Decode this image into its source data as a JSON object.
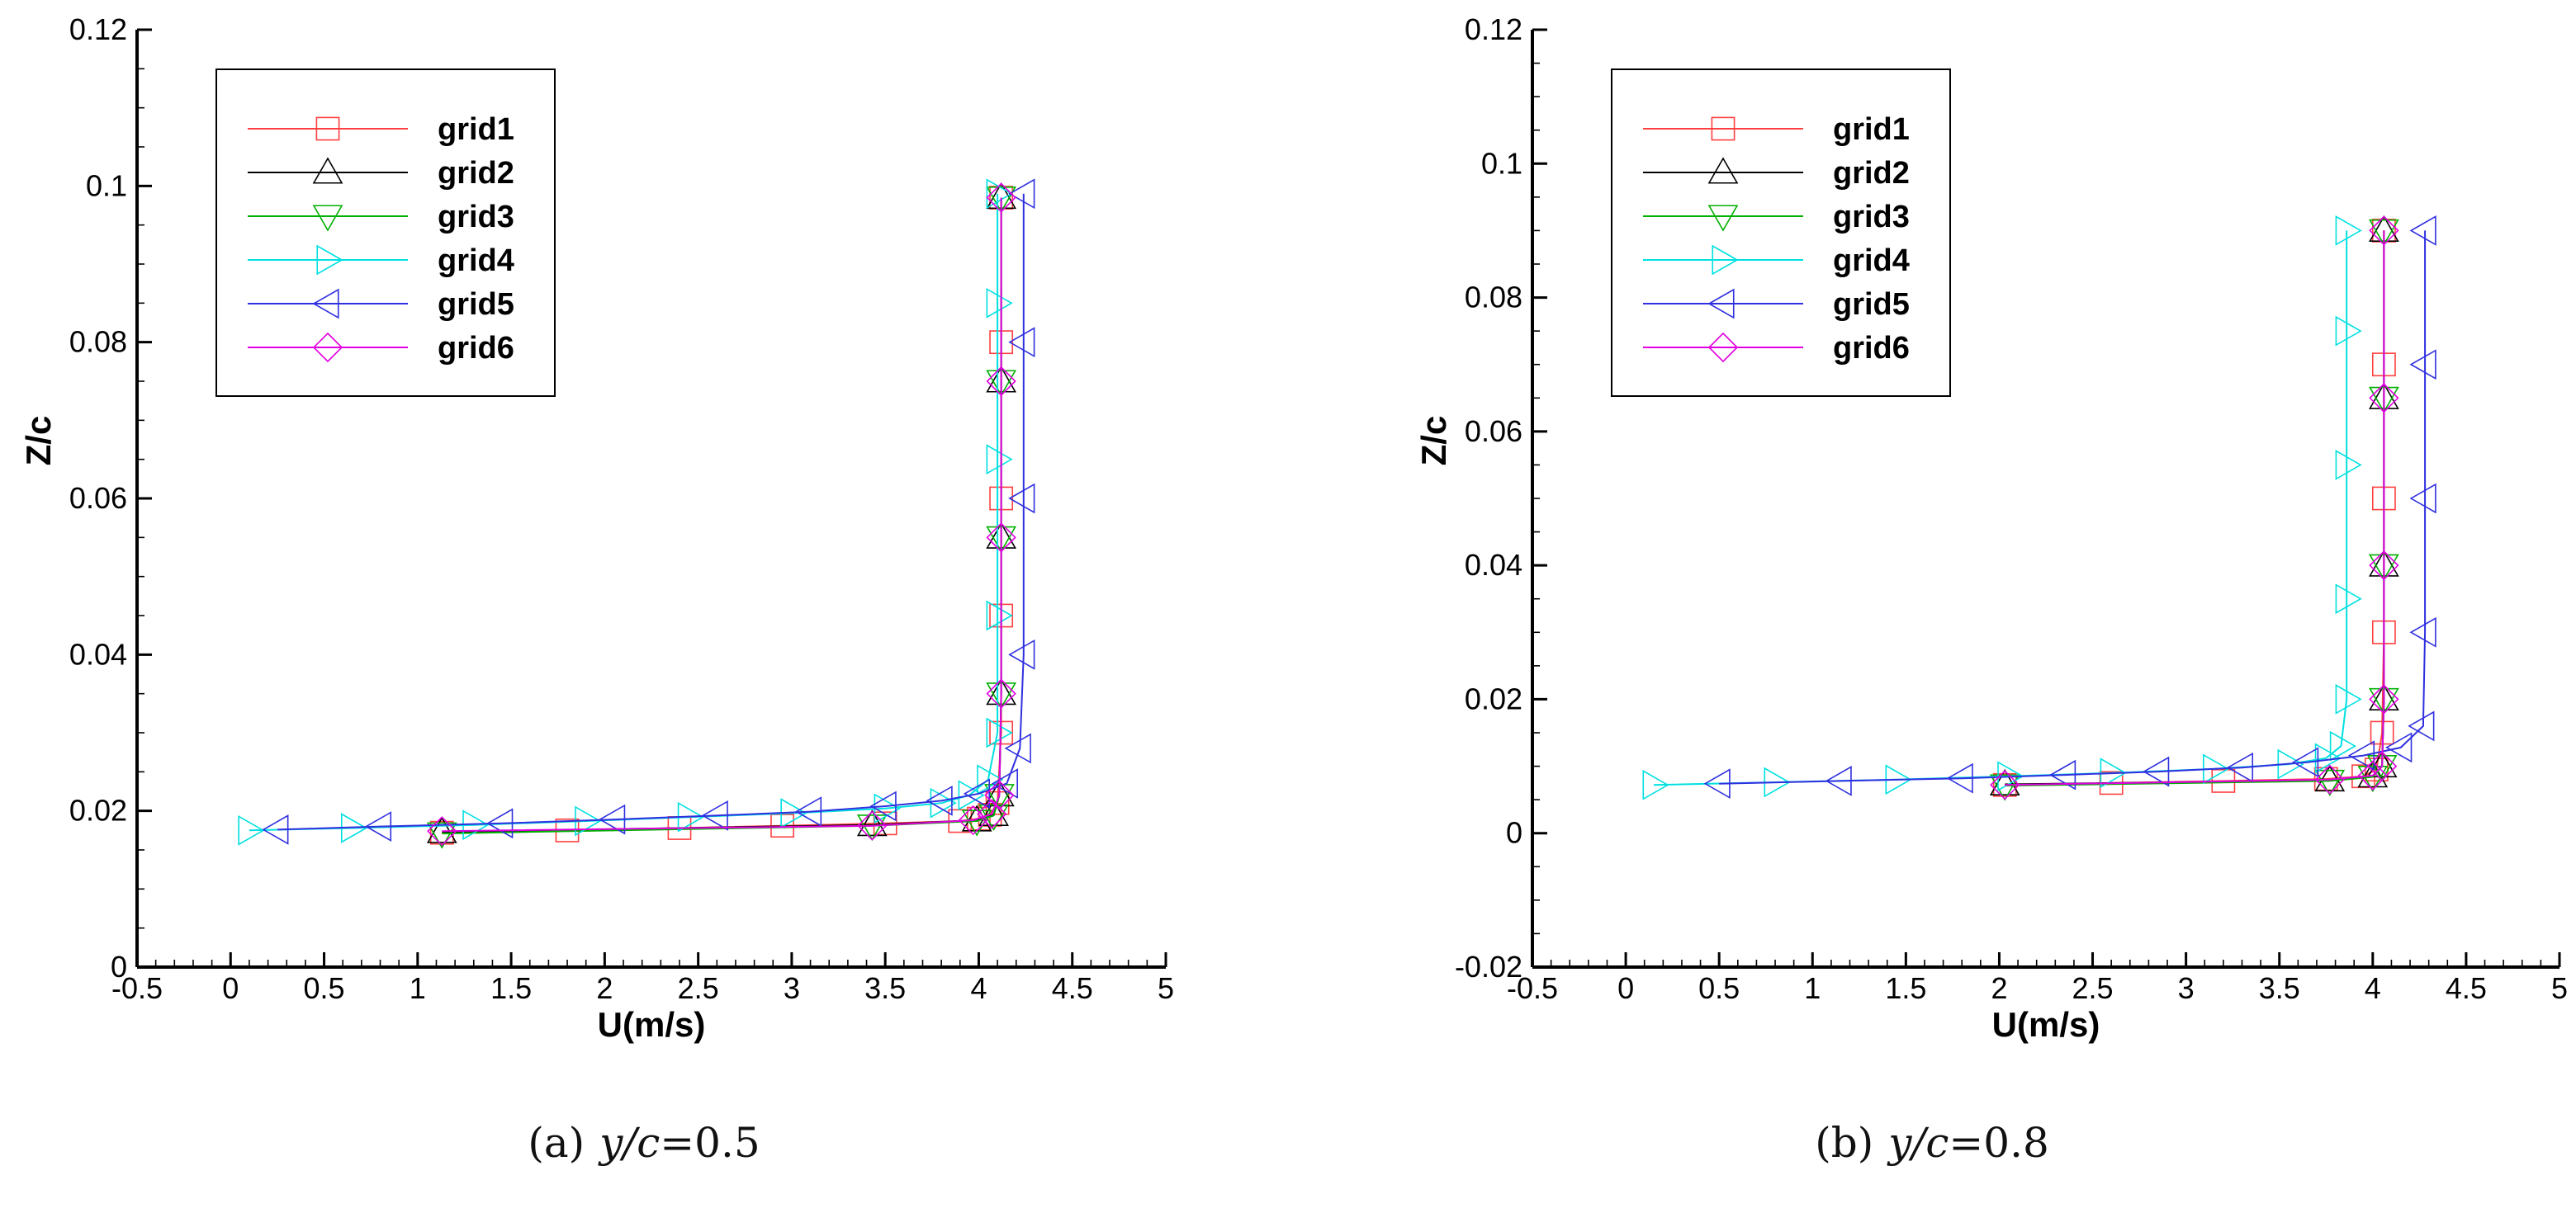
{
  "chart_data": [
    {
      "type": "line",
      "caption_label": "(a)",
      "caption_var": "y/c",
      "caption_value": "=0.5",
      "xlabel": "U(m/s)",
      "ylabel": "Z/c",
      "xlim": [
        -0.5,
        5
      ],
      "ylim": [
        0,
        0.12
      ],
      "xticks": [
        "-0.5",
        "0",
        "0.5",
        "1",
        "1.5",
        "2",
        "2.5",
        "3",
        "3.5",
        "4",
        "4.5",
        "5"
      ],
      "yticks": [
        "0",
        "0.02",
        "0.04",
        "0.06",
        "0.08",
        "0.1",
        "0.12"
      ],
      "x_minor_step": 0.1,
      "y_minor_step": 0.005,
      "legend_position": "top-left",
      "series": [
        {
          "name": "grid1",
          "color": "#ff4040",
          "marker": "square",
          "x": [
            1.13,
            1.8,
            2.4,
            2.95,
            3.5,
            3.9,
            4.0,
            4.06,
            4.1,
            4.12,
            4.12,
            4.12,
            4.12,
            4.12
          ],
          "y": [
            0.0172,
            0.0175,
            0.0178,
            0.0181,
            0.0184,
            0.0187,
            0.019,
            0.0195,
            0.021,
            0.03,
            0.045,
            0.06,
            0.08,
            0.0985
          ]
        },
        {
          "name": "grid2",
          "color": "#000000",
          "marker": "triangle-up",
          "x": [
            1.13,
            3.43,
            3.99,
            4.08,
            4.11,
            4.12,
            4.12,
            4.12,
            4.12
          ],
          "y": [
            0.0173,
            0.0182,
            0.0188,
            0.0195,
            0.022,
            0.035,
            0.055,
            0.075,
            0.0985
          ]
        },
        {
          "name": "grid3",
          "color": "#00b000",
          "marker": "triangle-down",
          "x": [
            1.13,
            3.43,
            3.99,
            4.08,
            4.11,
            4.12,
            4.12,
            4.12,
            4.12
          ],
          "y": [
            0.0171,
            0.0181,
            0.0187,
            0.0194,
            0.022,
            0.035,
            0.055,
            0.075,
            0.0985
          ]
        },
        {
          "name": "grid4",
          "color": "#00e0e0",
          "marker": "triangle-right",
          "x": [
            0.1,
            0.65,
            1.3,
            1.9,
            2.45,
            3.0,
            3.5,
            3.8,
            3.95,
            4.05,
            4.1,
            4.1,
            4.1,
            4.1,
            4.1
          ],
          "y": [
            0.0175,
            0.0178,
            0.0182,
            0.0187,
            0.0192,
            0.0197,
            0.0203,
            0.021,
            0.022,
            0.024,
            0.03,
            0.045,
            0.065,
            0.085,
            0.099
          ]
        },
        {
          "name": "grid5",
          "color": "#3030e0",
          "marker": "triangle-left",
          "x": [
            0.25,
            0.8,
            1.45,
            2.05,
            2.6,
            3.1,
            3.5,
            3.8,
            4.0,
            4.15,
            4.22,
            4.24,
            4.24,
            4.24,
            4.24
          ],
          "y": [
            0.0176,
            0.018,
            0.0184,
            0.0189,
            0.0194,
            0.0199,
            0.0206,
            0.0213,
            0.0222,
            0.0235,
            0.028,
            0.04,
            0.06,
            0.08,
            0.099
          ]
        },
        {
          "name": "grid6",
          "color": "#e000e0",
          "marker": "diamond",
          "x": [
            1.13,
            3.43,
            3.97,
            4.07,
            4.11,
            4.12,
            4.12,
            4.12,
            4.12
          ],
          "y": [
            0.0174,
            0.0181,
            0.0188,
            0.0196,
            0.022,
            0.035,
            0.055,
            0.075,
            0.0985
          ]
        }
      ]
    },
    {
      "type": "line",
      "caption_label": "(b)",
      "caption_var": "y/c",
      "caption_value": "=0.8",
      "xlabel": "U(m/s)",
      "ylabel": "Z/c",
      "xlim": [
        -0.5,
        5
      ],
      "ylim": [
        -0.02,
        0.12
      ],
      "xticks": [
        "-0.5",
        "0",
        "0.5",
        "1",
        "1.5",
        "2",
        "2.5",
        "3",
        "3.5",
        "4",
        "4.5",
        "5"
      ],
      "yticks": [
        "-0.02",
        "0",
        "0.02",
        "0.04",
        "0.06",
        "0.08",
        "0.1",
        "0.12"
      ],
      "x_minor_step": 0.1,
      "y_minor_step": 0.005,
      "legend_position": "top-left",
      "series": [
        {
          "name": "grid1",
          "color": "#ff4040",
          "marker": "square",
          "x": [
            2.03,
            2.6,
            3.2,
            3.75,
            3.95,
            4.02,
            4.05,
            4.06,
            4.06,
            4.06,
            4.06
          ],
          "y": [
            0.0072,
            0.0075,
            0.0078,
            0.0081,
            0.0085,
            0.0095,
            0.015,
            0.03,
            0.05,
            0.07,
            0.09
          ]
        },
        {
          "name": "grid2",
          "color": "#000000",
          "marker": "triangle-up",
          "x": [
            2.03,
            3.77,
            4.0,
            4.05,
            4.06,
            4.06,
            4.06,
            4.06
          ],
          "y": [
            0.0073,
            0.0079,
            0.0085,
            0.01,
            0.02,
            0.04,
            0.065,
            0.09
          ]
        },
        {
          "name": "grid3",
          "color": "#00b000",
          "marker": "triangle-down",
          "x": [
            2.03,
            3.77,
            4.0,
            4.05,
            4.06,
            4.06,
            4.06,
            4.06
          ],
          "y": [
            0.0071,
            0.0078,
            0.0084,
            0.01,
            0.02,
            0.04,
            0.065,
            0.09
          ]
        },
        {
          "name": "grid4",
          "color": "#00e0e0",
          "marker": "triangle-right",
          "x": [
            0.15,
            0.8,
            1.45,
            2.05,
            2.6,
            3.15,
            3.55,
            3.75,
            3.83,
            3.86,
            3.86,
            3.86,
            3.86,
            3.86
          ],
          "y": [
            0.0072,
            0.0076,
            0.008,
            0.0085,
            0.009,
            0.0096,
            0.0103,
            0.0112,
            0.013,
            0.02,
            0.035,
            0.055,
            0.075,
            0.09
          ]
        },
        {
          "name": "grid5",
          "color": "#3030e0",
          "marker": "triangle-left",
          "x": [
            0.5,
            1.15,
            1.8,
            2.35,
            2.85,
            3.3,
            3.65,
            3.95,
            4.15,
            4.27,
            4.28,
            4.28,
            4.28,
            4.28
          ],
          "y": [
            0.0074,
            0.0078,
            0.0082,
            0.0087,
            0.0092,
            0.0098,
            0.0106,
            0.0116,
            0.0128,
            0.016,
            0.03,
            0.05,
            0.07,
            0.09
          ]
        },
        {
          "name": "grid6",
          "color": "#e000e0",
          "marker": "diamond",
          "x": [
            2.03,
            3.77,
            4.0,
            4.05,
            4.06,
            4.06,
            4.06,
            4.06
          ],
          "y": [
            0.0072,
            0.008,
            0.0086,
            0.01,
            0.02,
            0.04,
            0.065,
            0.09
          ]
        }
      ]
    }
  ]
}
